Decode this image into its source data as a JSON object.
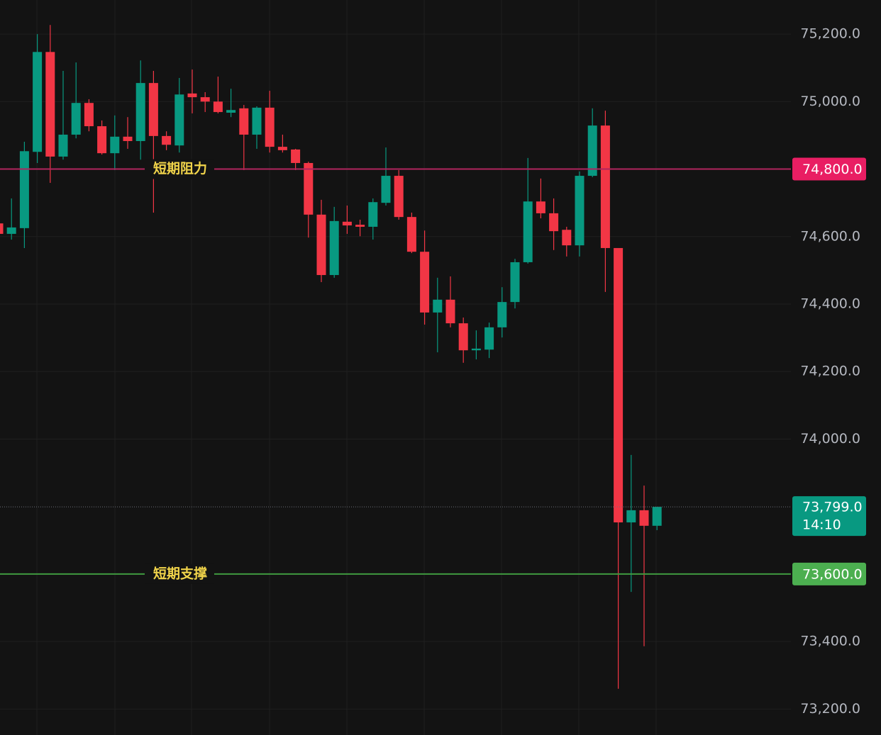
{
  "chart_data": {
    "type": "candlestick",
    "up_color": "#089981",
    "down_color": "#f23645",
    "ylim": [
      73123,
      75301
    ],
    "yticks": [
      {
        "value": 73200,
        "label": "73,200.0"
      },
      {
        "value": 73400,
        "label": "73,400.0"
      },
      {
        "value": 74000,
        "label": "74,000.0"
      },
      {
        "value": 74200,
        "label": "74,200.0"
      },
      {
        "value": 74400,
        "label": "74,400.0"
      },
      {
        "value": 74600,
        "label": "74,600.0"
      },
      {
        "value": 75000,
        "label": "75,000.0"
      },
      {
        "value": 75200,
        "label": "75,200.0"
      }
    ],
    "grid": true,
    "open": [
      74639,
      74608,
      74625,
      74851,
      75147,
      74837,
      74902,
      74996,
      74927,
      74847,
      74896,
      74883,
      75055,
      74898,
      74870,
      75024,
      75013,
      75000,
      74967,
      74980,
      74902,
      74982,
      74866,
      74858,
      74818,
      74665,
      74486,
      74644,
      74635,
      74629,
      74700,
      74780,
      74658,
      74555,
      74375,
      74413,
      74343,
      74263,
      74265,
      74331,
      74406,
      74524,
      74704,
      74669,
      74620,
      74574,
      74780,
      74929,
      74566,
      73753,
      73789,
      73743
    ],
    "high": [
      74670,
      74713,
      74881,
      75200,
      75227,
      75091,
      75116,
      75007,
      74944,
      74959,
      74954,
      75122,
      75091,
      74912,
      75070,
      75095,
      75028,
      75074,
      75038,
      74990,
      74986,
      75032,
      74902,
      74860,
      74822,
      74709,
      74688,
      74692,
      74650,
      74713,
      74864,
      74797,
      74671,
      74618,
      74478,
      74482,
      74360,
      74322,
      74345,
      74450,
      74534,
      74833,
      74772,
      74713,
      74629,
      74793,
      74980,
      74973,
      74566,
      73953,
      73862,
      73799
    ],
    "low": [
      74561,
      74591,
      74566,
      74818,
      74759,
      74828,
      74891,
      74912,
      74843,
      74797,
      74860,
      74828,
      74671,
      74856,
      74849,
      74965,
      74969,
      74965,
      74954,
      74797,
      74860,
      74849,
      74849,
      74797,
      74597,
      74465,
      74478,
      74608,
      74601,
      74591,
      74692,
      74650,
      74551,
      74339,
      74257,
      74331,
      74226,
      74236,
      74240,
      74301,
      74387,
      74520,
      74654,
      74560,
      74541,
      74541,
      74776,
      74436,
      73260,
      73547,
      73386,
      73730
    ],
    "close": [
      74608,
      74627,
      74853,
      75147,
      74837,
      74902,
      74996,
      74927,
      74847,
      74896,
      74883,
      75055,
      74898,
      74872,
      75021,
      75013,
      75000,
      74969,
      74975,
      74902,
      74982,
      74866,
      74856,
      74818,
      74665,
      74486,
      74646,
      74633,
      74629,
      74702,
      74780,
      74658,
      74555,
      74375,
      74413,
      74343,
      74263,
      74268,
      74331,
      74406,
      74524,
      74704,
      74669,
      74616,
      74574,
      74780,
      74929,
      74566,
      73753,
      73789,
      73743,
      73799
    ],
    "lines": [
      {
        "value": 74800,
        "value_label": "74,800.0",
        "label": "短期阻力",
        "color": "#b0245e",
        "box_color": "#e91e63"
      },
      {
        "value": 73600,
        "value_label": "73,600.0",
        "label": "短期支撑",
        "color": "#3f9a3f",
        "box_color": "#4caf50"
      }
    ],
    "last_price": {
      "value": 73799,
      "value_label": "73,799.0",
      "countdown": "14:10",
      "color": "#089981"
    }
  }
}
